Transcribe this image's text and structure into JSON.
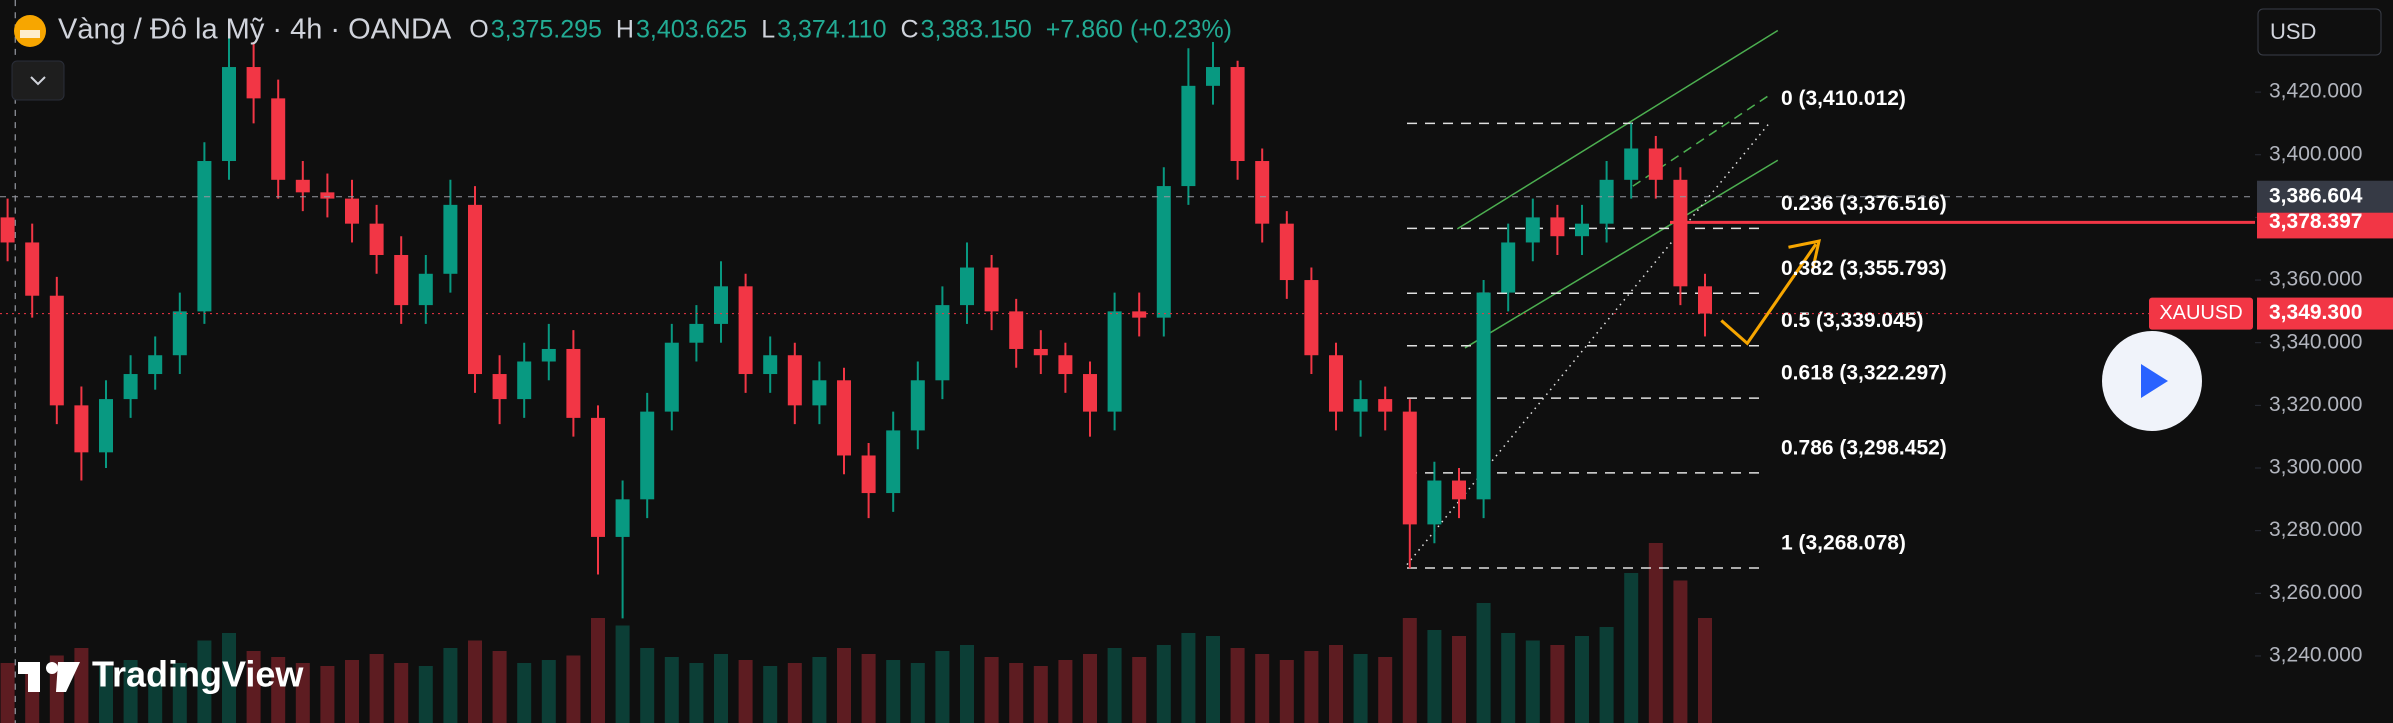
{
  "header": {
    "title": "Vàng / Đô la Mỹ · 4h · OANDA",
    "ohlc": [
      {
        "key": "O",
        "value": "3,375.295"
      },
      {
        "key": "H",
        "value": "3,403.625"
      },
      {
        "key": "L",
        "value": "3,374.110"
      },
      {
        "key": "C",
        "value": "3,383.150"
      }
    ],
    "change": "+7.860 (+0.23%)"
  },
  "currency": "USD",
  "brand": "TradingView",
  "chart_data": {
    "type": "candlestick",
    "up_color": "#089981",
    "down_color": "#f23645",
    "ylim": [
      3218.6,
      3449.4
    ],
    "yticks": [
      {
        "value": 3240,
        "label": "3,240.000"
      },
      {
        "value": 3260,
        "label": "3,260.000"
      },
      {
        "value": 3280,
        "label": "3,280.000"
      },
      {
        "value": 3300,
        "label": "3,300.000"
      },
      {
        "value": 3320,
        "label": "3,320.000"
      },
      {
        "value": 3340,
        "label": "3,340.000"
      },
      {
        "value": 3360,
        "label": "3,360.000"
      },
      {
        "value": 3380,
        "label": "3,380.000"
      },
      {
        "value": 3400,
        "label": "3,400.000"
      },
      {
        "value": 3420,
        "label": "3,420.000"
      }
    ],
    "open": [
      3380,
      3372,
      3355,
      3320,
      3305,
      3322,
      3330,
      3336,
      3350,
      3398,
      3428,
      3418,
      3392,
      3388,
      3386,
      3378,
      3368,
      3352,
      3362,
      3384,
      3330,
      3322,
      3334,
      3338,
      3316,
      3278,
      3290,
      3318,
      3340,
      3346,
      3358,
      3330,
      3336,
      3320,
      3328,
      3304,
      3292,
      3312,
      3328,
      3352,
      3364,
      3350,
      3338,
      3336,
      3330,
      3318,
      3350,
      3348,
      3390,
      3422,
      3428,
      3398,
      3378,
      3360,
      3336,
      3318,
      3322,
      3318,
      3282,
      3296,
      3290,
      3356,
      3372,
      3380,
      3374,
      3378,
      3392,
      3402,
      3392,
      3358
    ],
    "high": [
      3386,
      3378,
      3361,
      3326,
      3328,
      3336,
      3342,
      3356,
      3404,
      3440,
      3436,
      3424,
      3398,
      3394,
      3392,
      3384,
      3374,
      3368,
      3392,
      3390,
      3336,
      3340,
      3346,
      3344,
      3320,
      3296,
      3324,
      3346,
      3352,
      3366,
      3362,
      3342,
      3340,
      3334,
      3332,
      3308,
      3318,
      3334,
      3358,
      3372,
      3368,
      3354,
      3344,
      3340,
      3334,
      3356,
      3356,
      3396,
      3434,
      3436,
      3430,
      3402,
      3382,
      3364,
      3340,
      3328,
      3326,
      3322,
      3302,
      3300,
      3360,
      3378,
      3386,
      3384,
      3384,
      3398,
      3410,
      3406,
      3396,
      3362
    ],
    "low": [
      3366,
      3348,
      3314,
      3296,
      3300,
      3316,
      3325,
      3330,
      3346,
      3392,
      3410,
      3386,
      3382,
      3380,
      3372,
      3362,
      3346,
      3346,
      3356,
      3324,
      3314,
      3316,
      3328,
      3310,
      3266,
      3252,
      3284,
      3312,
      3334,
      3340,
      3324,
      3324,
      3314,
      3314,
      3298,
      3284,
      3286,
      3306,
      3322,
      3346,
      3344,
      3332,
      3330,
      3324,
      3310,
      3312,
      3342,
      3342,
      3384,
      3416,
      3392,
      3372,
      3354,
      3330,
      3312,
      3310,
      3312,
      3268,
      3276,
      3284,
      3284,
      3350,
      3366,
      3368,
      3368,
      3372,
      3386,
      3386,
      3352,
      3342
    ],
    "close": [
      3372,
      3355,
      3320,
      3305,
      3322,
      3330,
      3336,
      3350,
      3398,
      3428,
      3418,
      3392,
      3388,
      3386,
      3378,
      3368,
      3352,
      3362,
      3384,
      3330,
      3322,
      3334,
      3338,
      3316,
      3278,
      3290,
      3318,
      3340,
      3346,
      3358,
      3330,
      3336,
      3320,
      3328,
      3304,
      3292,
      3312,
      3328,
      3352,
      3364,
      3350,
      3338,
      3336,
      3330,
      3318,
      3350,
      3348,
      3390,
      3422,
      3428,
      3398,
      3378,
      3360,
      3336,
      3318,
      3322,
      3318,
      3282,
      3296,
      3290,
      3356,
      3372,
      3380,
      3374,
      3378,
      3392,
      3402,
      3392,
      3358,
      3349.3
    ],
    "volume": [
      40,
      35,
      45,
      50,
      38,
      42,
      36,
      40,
      55,
      60,
      48,
      44,
      40,
      38,
      42,
      46,
      40,
      38,
      50,
      55,
      48,
      40,
      42,
      45,
      70,
      65,
      50,
      44,
      40,
      46,
      42,
      38,
      40,
      44,
      50,
      46,
      42,
      40,
      48,
      52,
      44,
      40,
      38,
      42,
      46,
      50,
      44,
      52,
      60,
      58,
      50,
      46,
      42,
      48,
      52,
      46,
      44,
      70,
      62,
      58,
      80,
      60,
      55,
      52,
      58,
      64,
      100,
      120,
      95,
      70
    ]
  },
  "price_labels": {
    "crosshair": {
      "value": 3386.604,
      "label": "3,386.604"
    },
    "level": {
      "value": 3378.397,
      "label": "3,378.397"
    },
    "last": {
      "symbol": "XAUUSD",
      "value": 3349.3,
      "label": "3,349.300"
    }
  },
  "fib": {
    "levels": [
      {
        "value": 3410.012,
        "label": "0 (3,410.012)"
      },
      {
        "value": 3376.516,
        "label": "0.236 (3,376.516)"
      },
      {
        "value": 3355.793,
        "label": "0.382 (3,355.793)"
      },
      {
        "value": 3339.045,
        "label": "0.5 (3,339.045)"
      },
      {
        "value": 3322.297,
        "label": "0.618 (3,322.297)"
      },
      {
        "value": 3298.452,
        "label": "0.786 (3,298.452)"
      },
      {
        "value": 3268.078,
        "label": "1 (3,268.078)"
      }
    ]
  }
}
